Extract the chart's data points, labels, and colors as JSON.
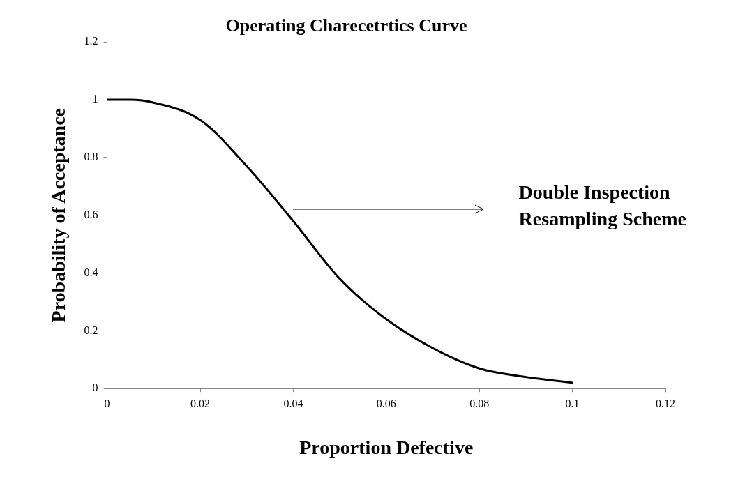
{
  "chart_data": {
    "type": "line",
    "title": "Operating Charecetrtics Curve",
    "xlabel": "Proportion Defective",
    "ylabel": "Probability of Acceptance",
    "x": [
      0,
      0.005,
      0.01,
      0.02,
      0.03,
      0.04,
      0.05,
      0.06,
      0.07,
      0.08,
      0.09,
      0.1
    ],
    "series": [
      {
        "color": "#000000",
        "values": [
          1,
          1,
          0.99,
          0.93,
          0.77,
          0.58,
          0.38,
          0.24,
          0.14,
          0.07,
          0.04,
          0.02
        ]
      }
    ],
    "xlim": [
      0,
      0.12
    ],
    "xticks": [
      0,
      0.02,
      0.04,
      0.06,
      0.08,
      0.1,
      0.12
    ],
    "ylim": [
      0,
      1.2
    ],
    "yticks": [
      0,
      0.2,
      0.4,
      0.6,
      0.8,
      1,
      1.2
    ],
    "annotations": [
      "Double Inspection\nResampling Scheme"
    ],
    "grid": false,
    "legend": false,
    "marker": "none",
    "line_style": "solid"
  }
}
